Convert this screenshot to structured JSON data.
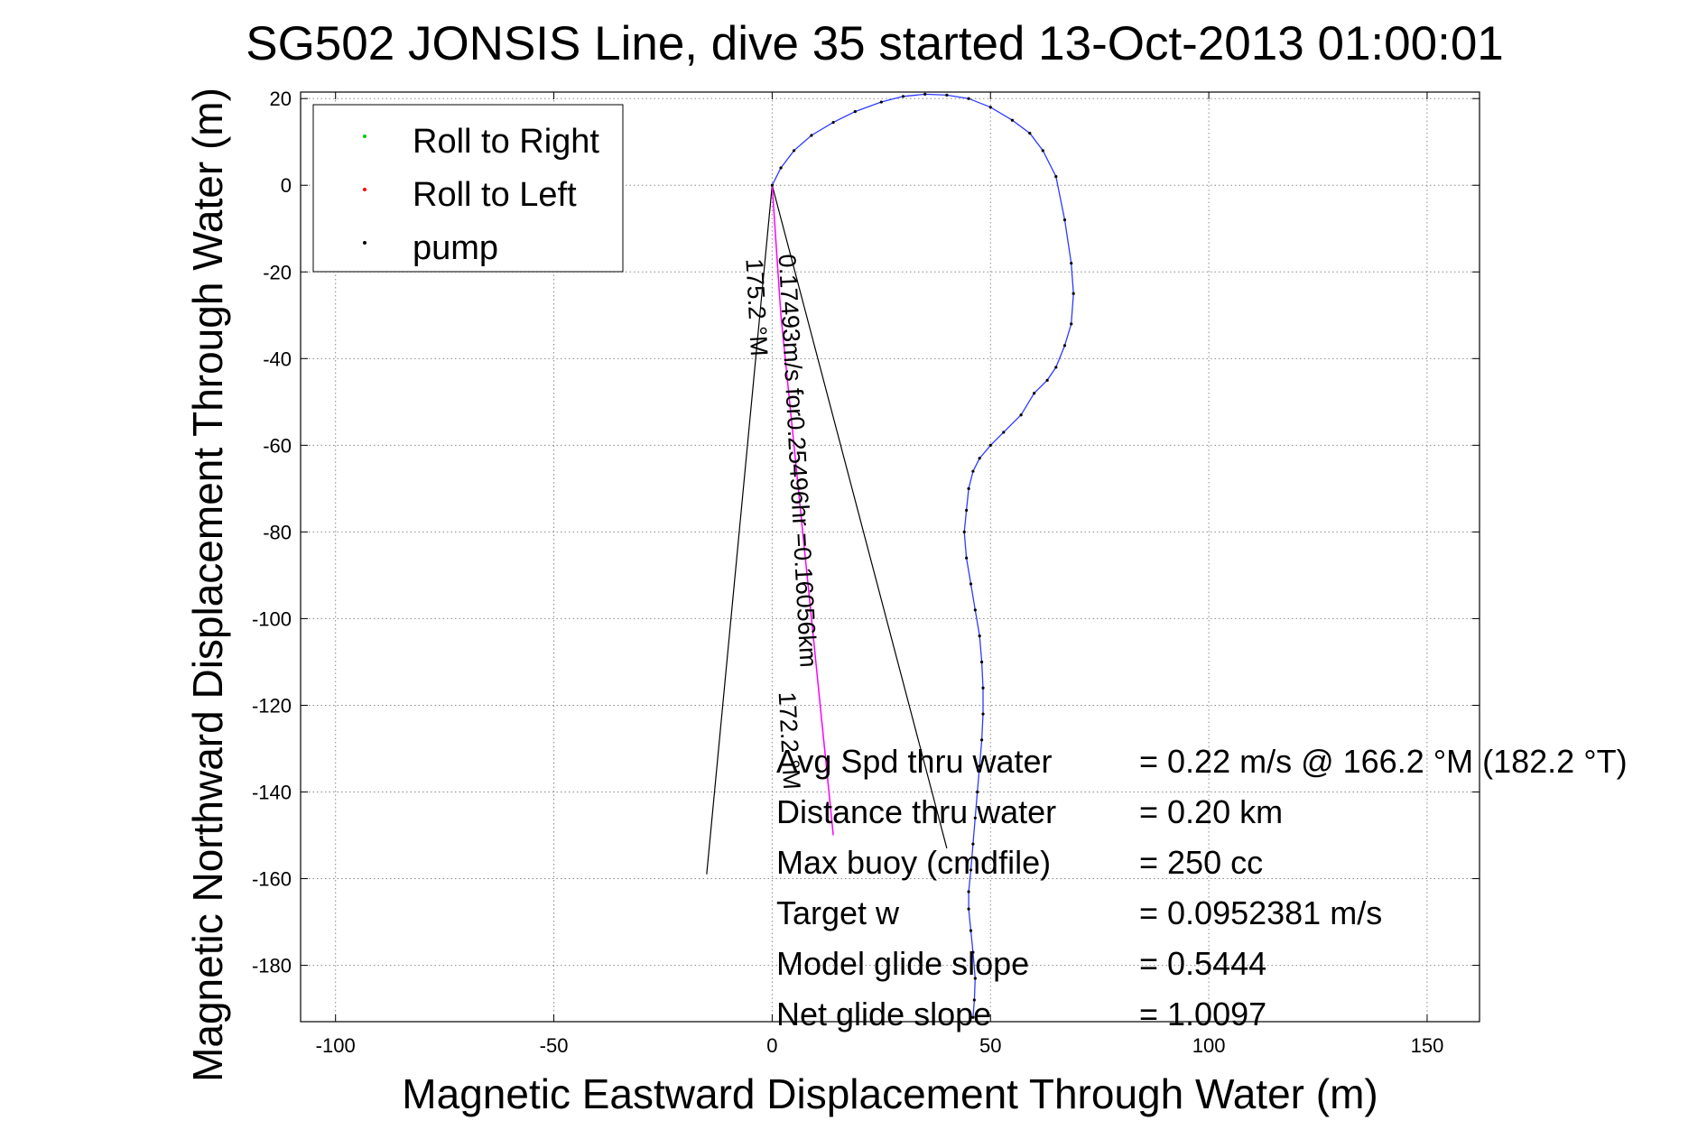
{
  "chart_data": {
    "type": "line",
    "title": "SG502 JONSIS Line, dive 35 started 13-Oct-2013 01:00:01",
    "xlabel": "Magnetic Eastward Displacement Through Water (m)",
    "ylabel": "Magnetic Northward Displacement Through Water (m)",
    "xlim": [
      -108,
      162
    ],
    "ylim": [
      -193,
      21.5
    ],
    "xticks": [
      -100,
      -50,
      0,
      50,
      100,
      150
    ],
    "yticks": [
      20,
      0,
      -20,
      -40,
      -60,
      -80,
      -100,
      -120,
      -140,
      -160,
      -180
    ],
    "grid": true,
    "legend_position": "top-left",
    "legend": [
      {
        "label": "Roll to Right",
        "color": "#00cc00"
      },
      {
        "label": "Roll to Left",
        "color": "#ff0000"
      },
      {
        "label": "pump",
        "color": "#000000"
      }
    ],
    "series": [
      {
        "role": "track",
        "color": "#2e3bff",
        "x": [
          0,
          2,
          5,
          9,
          14,
          19,
          25,
          30,
          35,
          40,
          45,
          50,
          55,
          59,
          62,
          65,
          67,
          68.5,
          69,
          68.5,
          67,
          65,
          63,
          60,
          57,
          53,
          50,
          47.5,
          46,
          45,
          44.5,
          44,
          44.5,
          45.5,
          46.5,
          47.5,
          48,
          48.3,
          48.3,
          48,
          47.5,
          47,
          46.5,
          46,
          45.5,
          45,
          45,
          45.5,
          46,
          46.5,
          46.3,
          46
        ],
        "y": [
          0,
          4,
          8,
          11.5,
          14.5,
          17,
          19.2,
          20.5,
          21,
          20.8,
          20,
          18,
          15,
          12,
          8,
          2,
          -8,
          -18,
          -25,
          -32,
          -37,
          -42,
          -45,
          -48,
          -53,
          -57,
          -60,
          -63,
          -66,
          -70,
          -75,
          -80,
          -86,
          -92,
          -98,
          -104,
          -110,
          -116,
          -122,
          -128,
          -134,
          -140,
          -146,
          -152,
          -158,
          -163,
          -167,
          -172,
          -177,
          -183,
          -188,
          -192
        ]
      },
      {
        "role": "current",
        "color": "#ff00ff",
        "x": [
          0,
          1,
          2,
          3.5,
          5,
          6.5,
          8,
          9.5,
          11,
          12.5,
          14
        ],
        "y": [
          0,
          -15,
          -30,
          -45,
          -60,
          -75,
          -90,
          -105,
          -120,
          -135,
          -150
        ]
      }
    ],
    "wedge": {
      "apex": [
        0,
        0
      ],
      "left_end": [
        -15,
        -159
      ],
      "right_end": [
        40,
        -153
      ]
    },
    "annotations": [
      {
        "text": "0.17493m/s for0.25496hr =0.16056km",
        "x": 1.5,
        "y": -16,
        "rotation": 87,
        "size": 27
      },
      {
        "text": "175.2 °M",
        "x": -6,
        "y": -17,
        "rotation": 87,
        "size": 27
      },
      {
        "text": "172.2 °M",
        "x": 1.5,
        "y": -117,
        "rotation": 87,
        "size": 27
      }
    ],
    "info_rows": [
      {
        "label": "Avg Spd thru water",
        "value": "=  0.22 m/s @ 166.2 °M (182.2 °T)"
      },
      {
        "label": "Distance thru water",
        "value": "=  0.20 km"
      },
      {
        "label": "Max buoy (cmdfile)",
        "value": "= 250 cc"
      },
      {
        "label": "Target w",
        "value": "= 0.0952381 m/s"
      },
      {
        "label": "Model glide slope",
        "value": "= 0.5444"
      },
      {
        "label": "Net glide slope",
        "value": "= 1.0097"
      }
    ]
  }
}
